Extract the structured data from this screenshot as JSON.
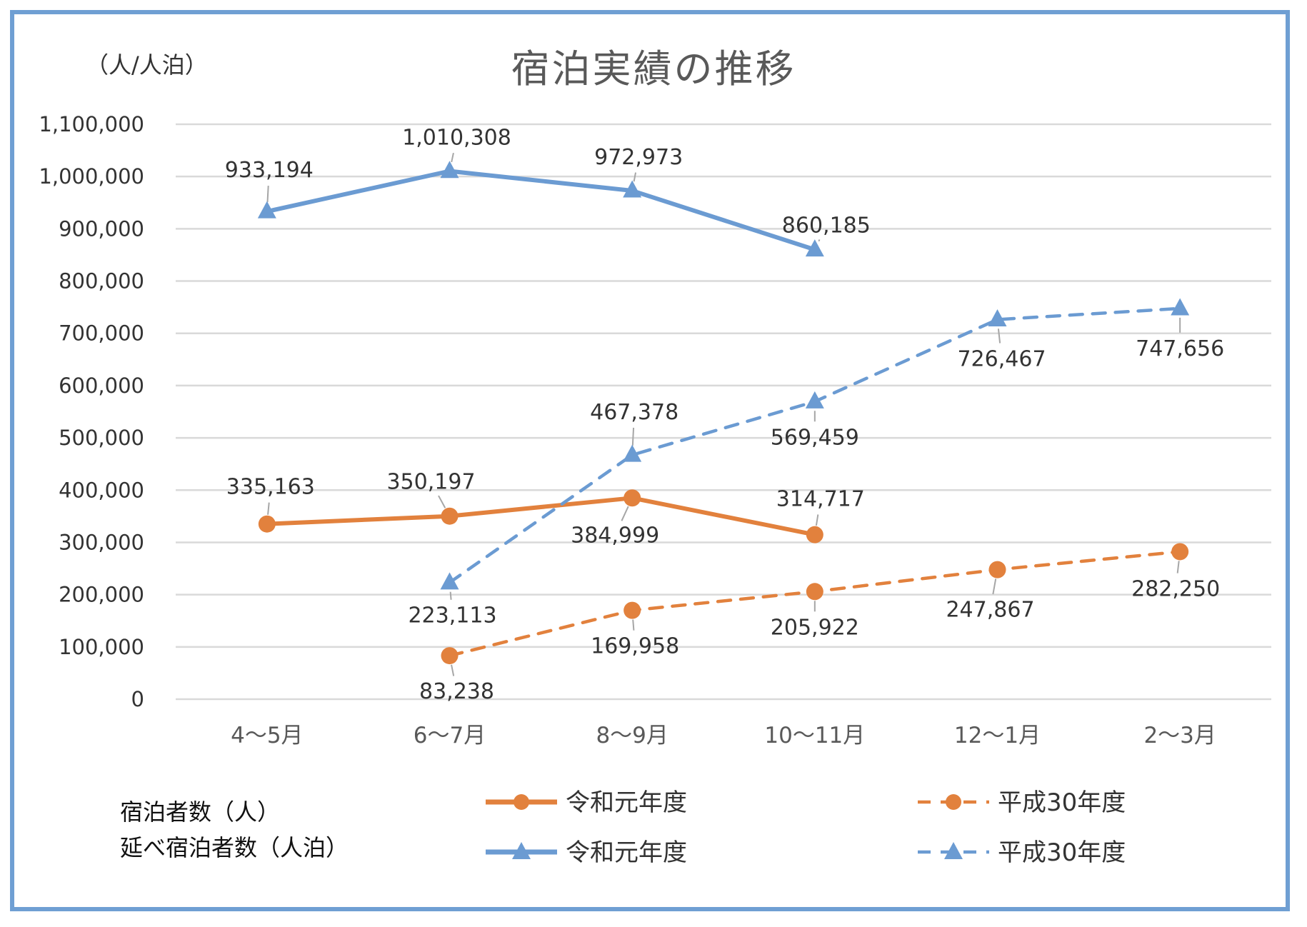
{
  "chart_data": {
    "type": "line",
    "title": "宿泊実績の推移",
    "ylabel": "（人/人泊）",
    "xlabel": "",
    "categories": [
      "4～5月",
      "6～7月",
      "8～9月",
      "10～11月",
      "12～1月",
      "2～3月"
    ],
    "ylim": [
      0,
      1100000
    ],
    "yticks": [
      0,
      100000,
      200000,
      300000,
      400000,
      500000,
      600000,
      700000,
      800000,
      900000,
      1000000,
      1100000
    ],
    "ytick_labels": [
      "0",
      "100,000",
      "200,000",
      "300,000",
      "400,000",
      "500,000",
      "600,000",
      "700,000",
      "800,000",
      "900,000",
      "1,000,000",
      "1,100,000"
    ],
    "grid": true,
    "legend_placement": "bottom",
    "legend_groups": [
      "宿泊者数（人）",
      "延べ宿泊者数（人泊）"
    ],
    "series": [
      {
        "name": "令和元年度",
        "group": "宿泊者数（人）",
        "color": "#e2813d",
        "style": "solid",
        "marker": "circle",
        "values": [
          335163,
          350197,
          384999,
          314717,
          null,
          null
        ],
        "labels": [
          "335,163",
          "350,197",
          "384,999",
          "314,717",
          "",
          ""
        ]
      },
      {
        "name": "平成30年度",
        "group": "宿泊者数（人）",
        "color": "#e2813d",
        "style": "dashed",
        "marker": "circle",
        "values": [
          null,
          83238,
          169958,
          205922,
          247867,
          282250
        ],
        "labels": [
          "",
          "83,238",
          "169,958",
          "205,922",
          "247,867",
          "282,250"
        ]
      },
      {
        "name": "令和元年度",
        "group": "延べ宿泊者数（人泊）",
        "color": "#6b9bd2",
        "style": "solid",
        "marker": "triangle",
        "values": [
          933194,
          1010308,
          972973,
          860185,
          null,
          null
        ],
        "labels": [
          "933,194",
          "1,010,308",
          "972,973",
          "860,185",
          "",
          ""
        ]
      },
      {
        "name": "平成30年度",
        "group": "延べ宿泊者数（人泊）",
        "color": "#6b9bd2",
        "style": "dashed",
        "marker": "triangle",
        "values": [
          null,
          223113,
          467378,
          569459,
          726467,
          747656
        ],
        "labels": [
          "",
          "223,113",
          "467,378",
          "569,459",
          "726,467",
          "747,656"
        ]
      }
    ]
  }
}
